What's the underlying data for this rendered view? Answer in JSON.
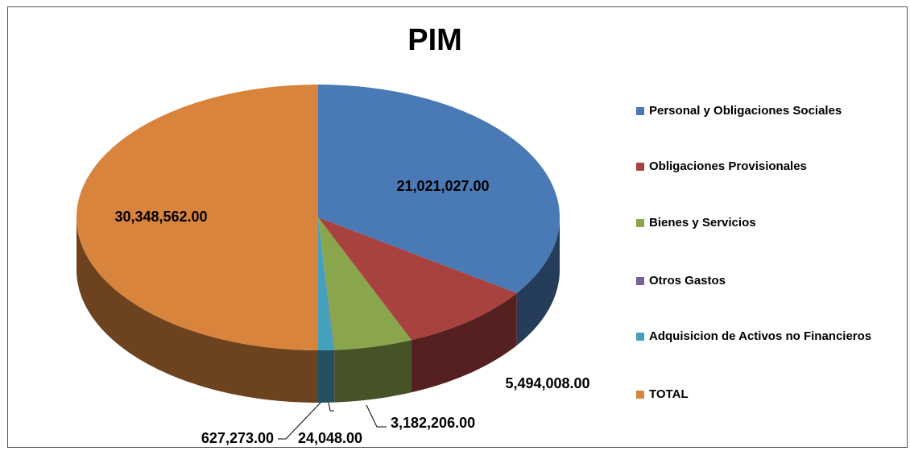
{
  "chart_data": {
    "type": "pie3d",
    "title": "PIM",
    "categories": [
      "Personal y Obligaciones Sociales",
      "Obligaciones Provisionales",
      "Bienes y Servicios",
      "Otros Gastos",
      "Adquisicion de Activos no Financieros",
      "TOTAL"
    ],
    "values": [
      21021027,
      5494008,
      3182206,
      24048,
      627273,
      30348562
    ],
    "value_labels": [
      "21,021,027.00",
      "5,494,008.00",
      "3,182,206.00",
      "24,048.00",
      "627,273.00",
      "30,348,562.00"
    ],
    "colors": [
      "#4a7ab5",
      "#a8423f",
      "#8aa64d",
      "#7a5e9d",
      "#45a0bb",
      "#d9843d"
    ],
    "legend": "right"
  }
}
